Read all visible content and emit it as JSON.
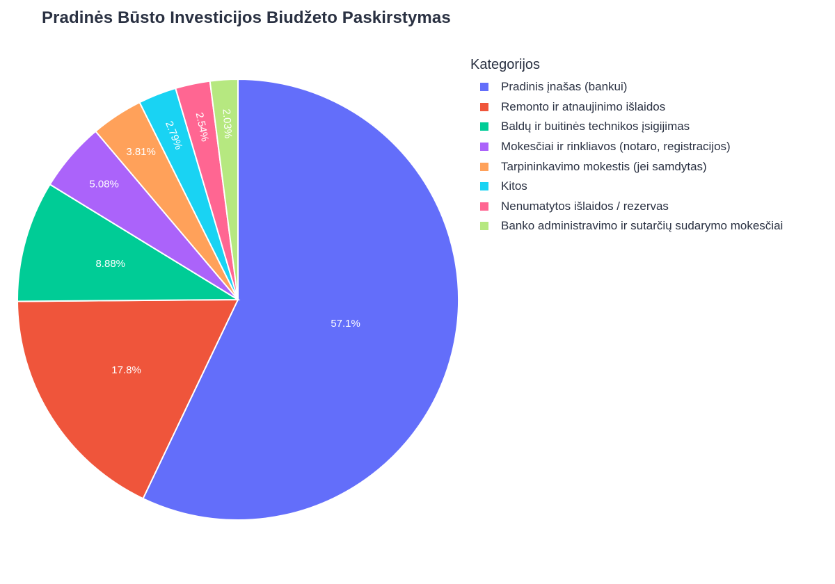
{
  "title": "Pradinės Būsto Investicijos Biudžeto Paskirstymas",
  "legend": {
    "title": "Kategorijos",
    "items": [
      {
        "label": "Pradinis įnašas (bankui)",
        "color": "#636efa"
      },
      {
        "label": "Remonto ir atnaujinimo išlaidos",
        "color": "#ef553b"
      },
      {
        "label": "Baldų ir buitinės technikos įsigijimas",
        "color": "#00cc96"
      },
      {
        "label": "Mokesčiai ir rinkliavos (notaro, registracijos)",
        "color": "#ab63fa"
      },
      {
        "label": "Tarpininkavimo mokestis (jei samdytas)",
        "color": "#ffa15a"
      },
      {
        "label": "Kitos",
        "color": "#19d3f3"
      },
      {
        "label": "Nenumatytos išlaidos / rezervas",
        "color": "#ff6692"
      },
      {
        "label": "Banko administravimo ir sutarčių sudarymo mokesčiai",
        "color": "#b6e880"
      }
    ]
  },
  "chart_data": {
    "type": "pie",
    "title": "Pradinės Būsto Investicijos Biudžeto Paskirstymas",
    "legend_title": "Kategorijos",
    "legend_position": "right",
    "categories": [
      "Pradinis įnašas (bankui)",
      "Remonto ir atnaujinimo išlaidos",
      "Baldų ir buitinės technikos įsigijimas",
      "Mokesčiai ir rinkliavos (notaro, registracijos)",
      "Tarpininkavimo mokestis (jei samdytas)",
      "Kitos",
      "Nenumatytos išlaidos / rezervas",
      "Banko administravimo ir sutarčių sudarymo mokesčiai"
    ],
    "values": [
      57.1,
      17.8,
      8.88,
      5.08,
      3.81,
      2.79,
      2.54,
      2.03
    ],
    "labels": [
      "57.1%",
      "17.8%",
      "8.88%",
      "5.08%",
      "3.81%",
      "2.79%",
      "2.54%",
      "2.03%"
    ],
    "colors": [
      "#636efa",
      "#ef553b",
      "#00cc96",
      "#ab63fa",
      "#ffa15a",
      "#19d3f3",
      "#ff6692",
      "#b6e880"
    ],
    "units": "percent"
  }
}
